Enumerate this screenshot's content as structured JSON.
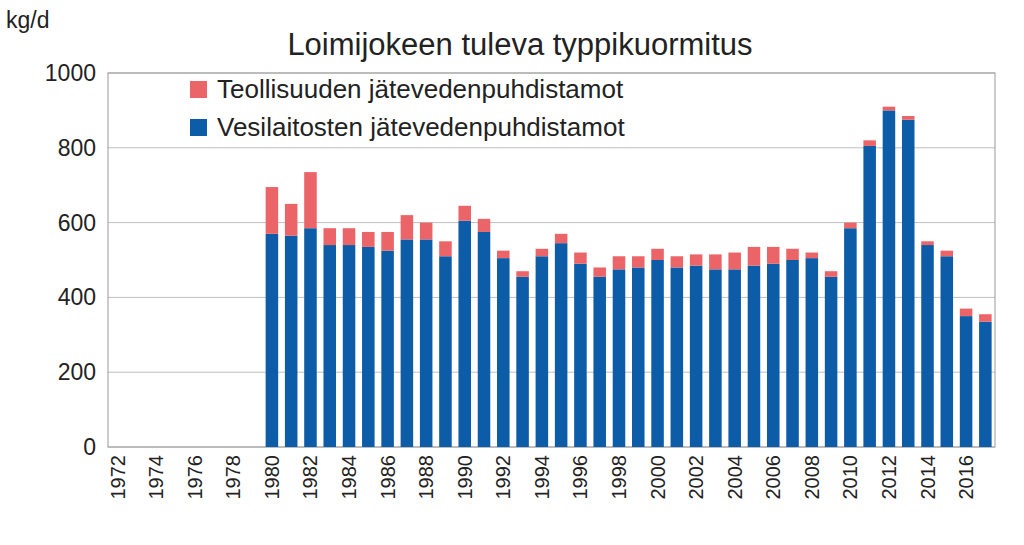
{
  "chart_data": {
    "type": "bar",
    "title": "Loimijokeen tuleva typpikuormitus",
    "y_label": "kg/d",
    "stacked": true,
    "grid": true,
    "legend": "top-left",
    "categories": [
      "1972",
      null,
      "1974",
      null,
      "1976",
      null,
      "1978",
      null,
      "1980",
      null,
      "1982",
      null,
      "1984",
      null,
      "1986",
      null,
      "1988",
      null,
      "1990",
      null,
      "1992",
      null,
      "1994",
      null,
      "1996",
      null,
      "1998",
      null,
      "2000",
      null,
      "2002",
      null,
      "2004",
      null,
      "2006",
      null,
      "2008",
      null,
      "2010",
      null,
      "2012",
      null,
      "2014",
      null,
      "2016",
      null
    ],
    "series": [
      {
        "name": "Vesilaitosten jätevedenpuhdistamot",
        "color": "#0d5ca8",
        "values": [
          null,
          null,
          null,
          null,
          null,
          null,
          null,
          null,
          570,
          565,
          585,
          540,
          540,
          535,
          525,
          555,
          555,
          510,
          605,
          575,
          505,
          455,
          510,
          545,
          490,
          455,
          475,
          480,
          500,
          480,
          485,
          475,
          475,
          485,
          490,
          500,
          505,
          455,
          585,
          805,
          900,
          875,
          540,
          510,
          350,
          335
        ]
      },
      {
        "name": "Teollisuuden jätevedenpuhdistamot",
        "color": "#eb6468",
        "values": [
          null,
          null,
          null,
          null,
          null,
          null,
          null,
          null,
          125,
          85,
          150,
          45,
          45,
          40,
          50,
          65,
          45,
          40,
          40,
          35,
          20,
          15,
          20,
          25,
          30,
          25,
          35,
          30,
          30,
          30,
          30,
          40,
          45,
          50,
          45,
          30,
          15,
          15,
          15,
          15,
          10,
          10,
          10,
          15,
          20,
          20
        ]
      }
    ],
    "ylim": [
      0,
      1000
    ],
    "yticks": [
      0,
      200,
      400,
      600,
      800,
      1000
    ]
  }
}
